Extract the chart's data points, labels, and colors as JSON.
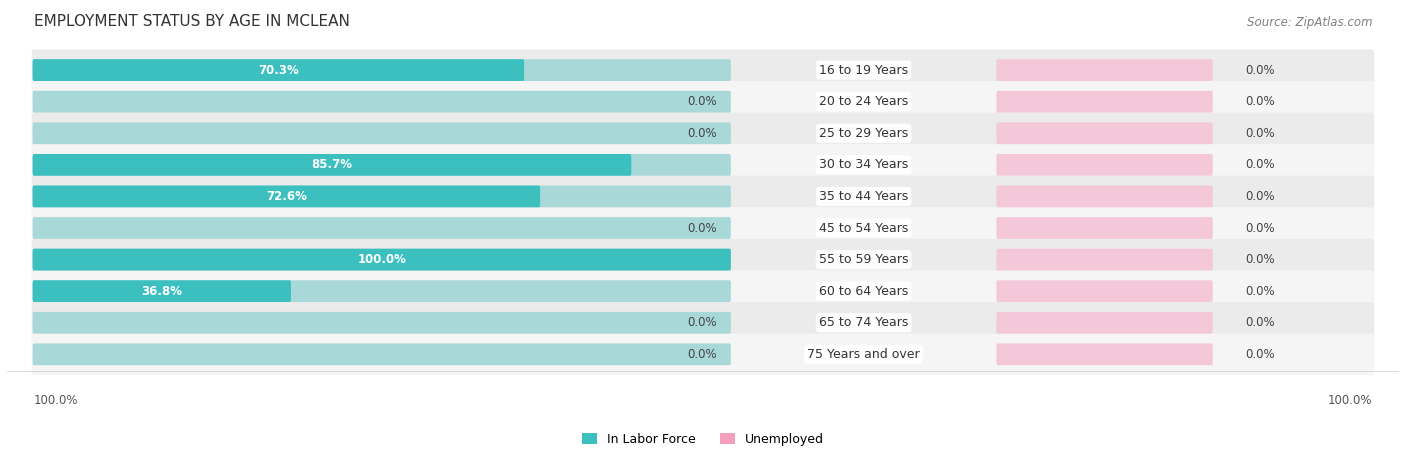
{
  "title": "EMPLOYMENT STATUS BY AGE IN MCLEAN",
  "source": "Source: ZipAtlas.com",
  "categories": [
    "16 to 19 Years",
    "20 to 24 Years",
    "25 to 29 Years",
    "30 to 34 Years",
    "35 to 44 Years",
    "45 to 54 Years",
    "55 to 59 Years",
    "60 to 64 Years",
    "65 to 74 Years",
    "75 Years and over"
  ],
  "labor_force": [
    70.3,
    0.0,
    0.0,
    85.7,
    72.6,
    0.0,
    100.0,
    36.8,
    0.0,
    0.0
  ],
  "unemployed": [
    0.0,
    0.0,
    0.0,
    0.0,
    0.0,
    0.0,
    0.0,
    0.0,
    0.0,
    0.0
  ],
  "labor_force_color": "#3bbfbf",
  "labor_force_bg_color": "#a8d8d8",
  "unemployed_color": "#f4a0bc",
  "unemployed_bg_color": "#f4c8d8",
  "row_bg_color": "#ebebeb",
  "row_bg_color2": "#f5f5f5",
  "max_value": 100.0,
  "label_fontsize": 9.0,
  "title_fontsize": 11,
  "source_fontsize": 8.5,
  "legend_fontsize": 9,
  "axis_label_left": "100.0%",
  "axis_label_right": "100.0%"
}
